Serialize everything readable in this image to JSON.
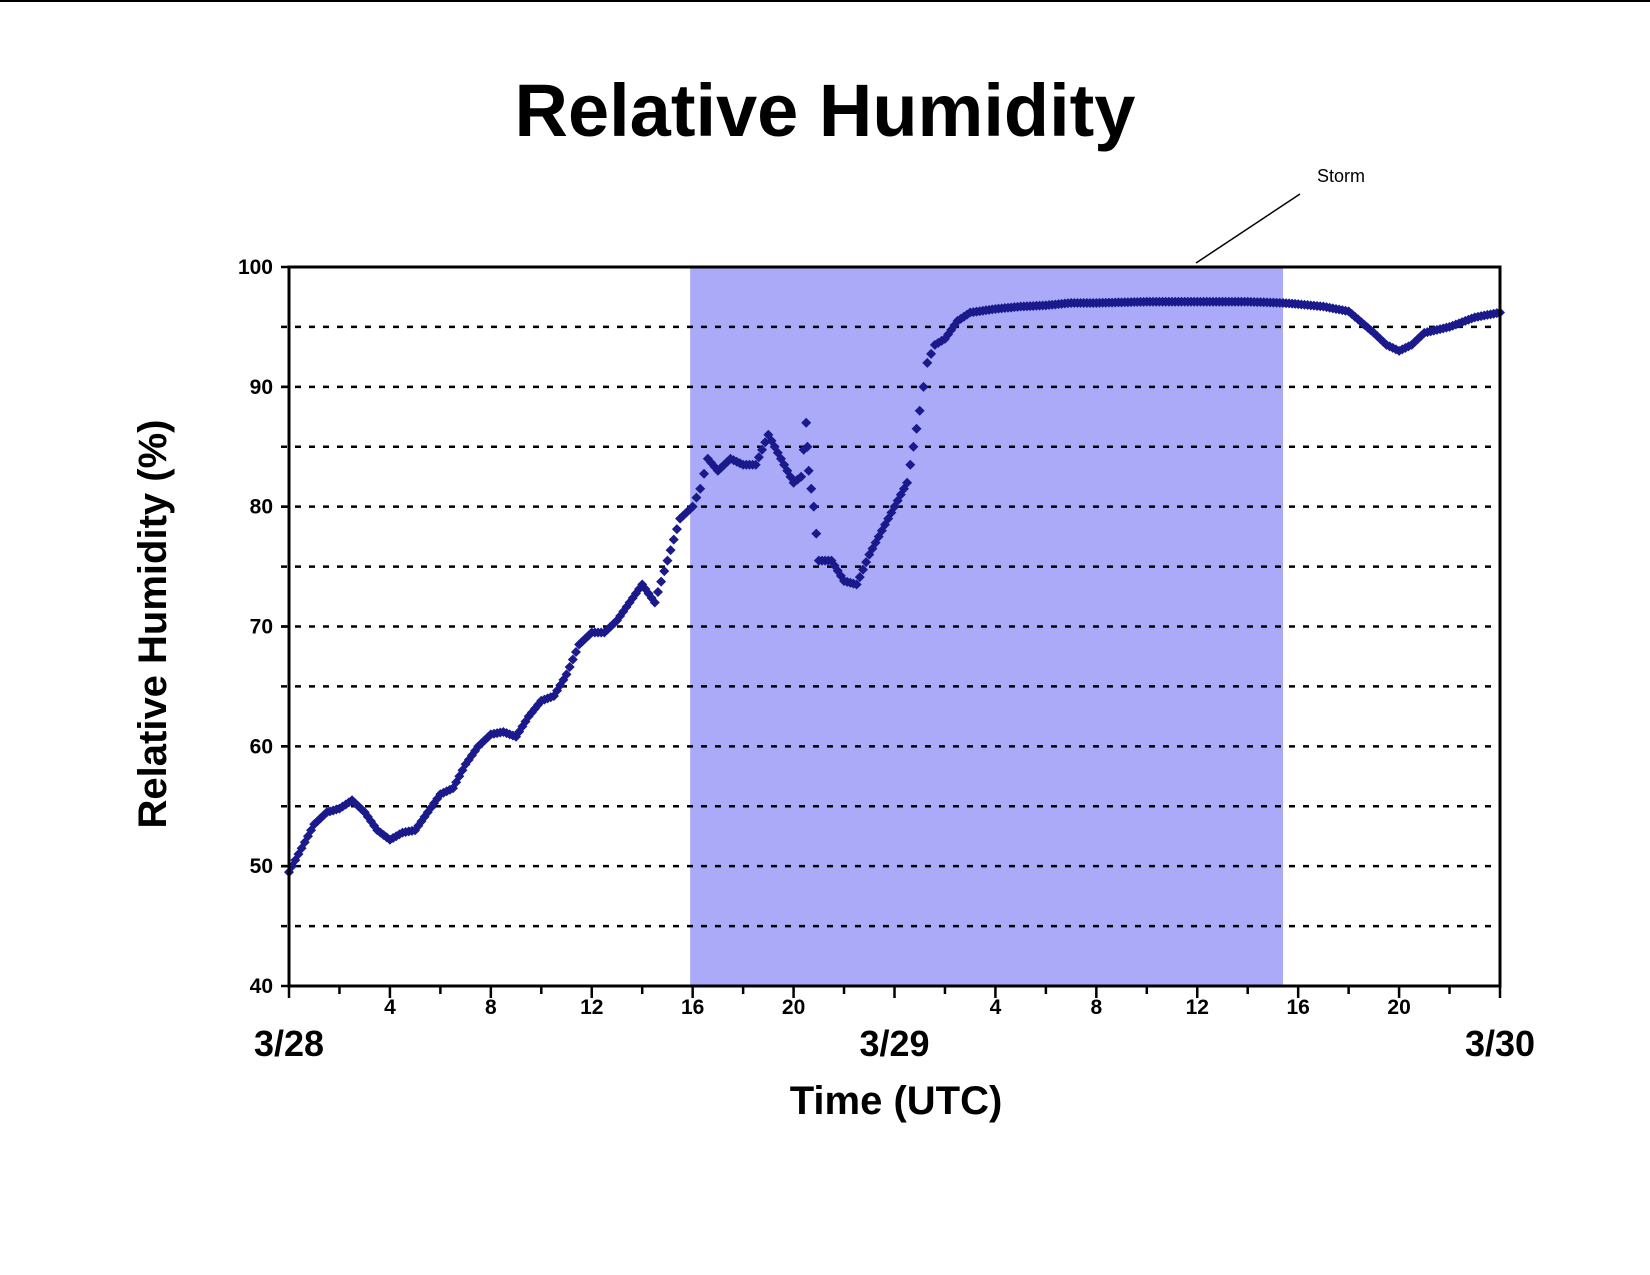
{
  "chart_data": {
    "type": "scatter",
    "title": "Relative Humidity",
    "xlabel": "Time (UTC)",
    "ylabel": "Relative Humidity (%)",
    "ylim": [
      40,
      100
    ],
    "yticks": [
      40,
      50,
      60,
      70,
      80,
      90,
      100
    ],
    "xlim": [
      "3/28 00:00",
      "3/30 00:00"
    ],
    "x_units": "hours since 3/28 00:00 UTC",
    "xticks_hours": [
      4,
      8,
      12,
      16,
      20,
      28,
      32,
      36,
      40,
      44
    ],
    "xtick_labels": [
      "4",
      "8",
      "12",
      "16",
      "20",
      "4",
      "8",
      "12",
      "16",
      "20"
    ],
    "day_labels": [
      {
        "hour": 0,
        "label": "3/28"
      },
      {
        "hour": 24,
        "label": "3/29"
      },
      {
        "hour": 48,
        "label": "3/30"
      }
    ],
    "grid": "horizontal dashed every 5%",
    "marker_color": "#1a1a8c",
    "shaded_region": {
      "label": "Storm",
      "start_hour": 15.9,
      "end_hour": 39.4,
      "color": "#aaaaf8"
    },
    "series": [
      {
        "marker": "diamond",
        "x": [
          0,
          0.5,
          1,
          1.5,
          2,
          2.5,
          3,
          3.5,
          4,
          4.5,
          5,
          5.5,
          6,
          6.5,
          7,
          7.5,
          8,
          8.5,
          9,
          9.5,
          10,
          10.5,
          11,
          11.5,
          12,
          12.5,
          13,
          13.5,
          14,
          14.5,
          15,
          15.5,
          16,
          16.3,
          16.6,
          17,
          17.5,
          18,
          18.5,
          19,
          19.5,
          20,
          20.3,
          20.5,
          20.6,
          20.8,
          21,
          21.5,
          22,
          22.5,
          23,
          23.5,
          24,
          24.5,
          25,
          25.3,
          25.6,
          26,
          26.5,
          27,
          28,
          29,
          30,
          31,
          32,
          34,
          36,
          38,
          39.4,
          40,
          41,
          42,
          43,
          43.5,
          44,
          44.5,
          45,
          46,
          47,
          48
        ],
        "y": [
          49.5,
          51.5,
          53.5,
          54.5,
          54.8,
          55.5,
          54.5,
          53,
          52.2,
          52.8,
          53,
          54.5,
          56,
          56.5,
          58.5,
          60,
          61,
          61.2,
          60.8,
          62.5,
          63.8,
          64.2,
          66,
          68.5,
          69.5,
          69.5,
          70.5,
          72,
          73.5,
          72,
          75.5,
          79,
          80,
          81.5,
          84,
          83,
          84,
          83.5,
          83.5,
          86,
          84,
          82,
          82.5,
          87,
          83,
          80,
          75.5,
          75.5,
          73.8,
          73.5,
          76,
          78,
          80,
          82,
          88,
          92,
          93.5,
          94,
          95.5,
          96.2,
          96.5,
          96.7,
          96.8,
          97,
          97,
          97.1,
          97.1,
          97.1,
          97,
          96.9,
          96.7,
          96.3,
          94.5,
          93.5,
          93,
          93.5,
          94.5,
          95,
          95.8,
          96.2
        ]
      }
    ],
    "annotations": [
      {
        "text": "Storm",
        "points_to": "top of shaded region"
      }
    ]
  }
}
